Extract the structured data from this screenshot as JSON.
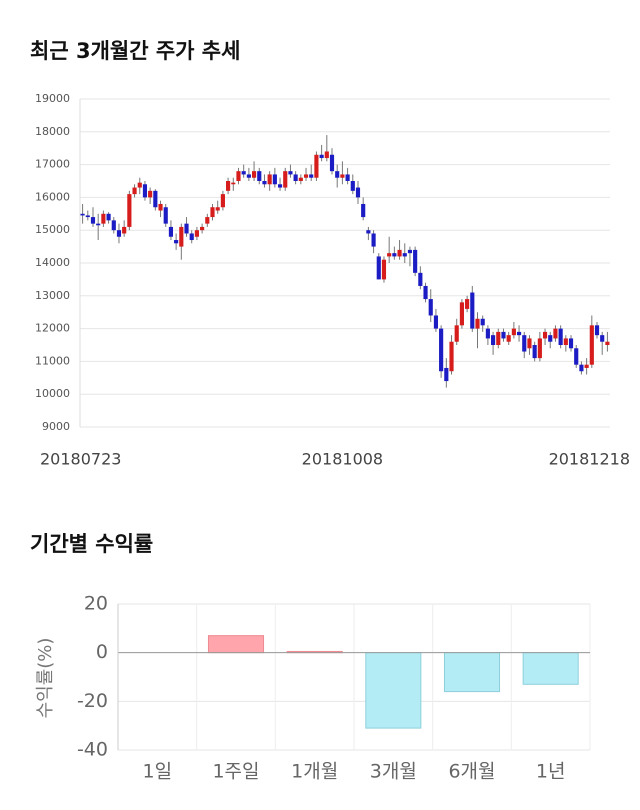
{
  "chart_data": [
    {
      "type": "candlestick",
      "title": "최근 3개월간 주가 추세",
      "categories": [
        "20180723",
        null,
        null,
        null,
        null,
        null,
        null,
        null,
        null,
        null,
        null,
        null,
        null,
        null,
        null,
        null,
        null,
        null,
        null,
        null,
        null,
        null,
        null,
        null,
        null,
        null,
        null,
        null,
        null,
        null,
        null,
        null,
        null,
        null,
        null,
        null,
        null,
        null,
        null,
        null,
        null,
        null,
        null,
        null,
        null,
        null,
        null,
        null,
        null,
        null,
        "20181008",
        null,
        null,
        null,
        null,
        null,
        null,
        null,
        null,
        null,
        null,
        null,
        null,
        null,
        null,
        null,
        null,
        null,
        null,
        null,
        null,
        null,
        null,
        null,
        null,
        null,
        null,
        null,
        null,
        null,
        null,
        null,
        null,
        null,
        null,
        null,
        null,
        null,
        null,
        null,
        null,
        null,
        null,
        null,
        null,
        null,
        null,
        null,
        null,
        null,
        null,
        "20181218"
      ],
      "candles": [
        [
          15500,
          15800,
          15200,
          15450
        ],
        [
          15450,
          15600,
          15300,
          15400
        ],
        [
          15400,
          15700,
          15100,
          15200
        ],
        [
          15200,
          15500,
          14700,
          15150
        ],
        [
          15200,
          15600,
          15100,
          15500
        ],
        [
          15500,
          15550,
          15200,
          15300
        ],
        [
          15300,
          15400,
          14900,
          15000
        ],
        [
          15000,
          15200,
          14600,
          14800
        ],
        [
          14900,
          15300,
          14800,
          15100
        ],
        [
          15100,
          16200,
          15000,
          16100
        ],
        [
          16100,
          16400,
          16000,
          16300
        ],
        [
          16300,
          16600,
          16100,
          16450
        ],
        [
          16400,
          16500,
          15900,
          16000
        ],
        [
          16000,
          16300,
          15800,
          16200
        ],
        [
          16200,
          16250,
          15600,
          15700
        ],
        [
          15600,
          15900,
          15400,
          15800
        ],
        [
          15700,
          15800,
          15100,
          15200
        ],
        [
          15100,
          15300,
          14700,
          14800
        ],
        [
          14700,
          14900,
          14400,
          14600
        ],
        [
          14500,
          15200,
          14100,
          15100
        ],
        [
          15200,
          15400,
          14800,
          14900
        ],
        [
          14900,
          15000,
          14600,
          14700
        ],
        [
          14800,
          15100,
          14700,
          15000
        ],
        [
          15000,
          15200,
          14900,
          15100
        ],
        [
          15200,
          15500,
          15100,
          15400
        ],
        [
          15400,
          15800,
          15300,
          15700
        ],
        [
          15600,
          15900,
          15500,
          15700
        ],
        [
          15700,
          16200,
          15600,
          16100
        ],
        [
          16200,
          16600,
          16100,
          16500
        ],
        [
          16400,
          16600,
          16200,
          16450
        ],
        [
          16500,
          16900,
          16400,
          16800
        ],
        [
          16800,
          17000,
          16600,
          16700
        ],
        [
          16700,
          16900,
          16500,
          16600
        ],
        [
          16600,
          17100,
          16500,
          16800
        ],
        [
          16800,
          16900,
          16400,
          16500
        ],
        [
          16500,
          16700,
          16300,
          16400
        ],
        [
          16400,
          16800,
          16200,
          16700
        ],
        [
          16700,
          16900,
          16300,
          16400
        ],
        [
          16400,
          16600,
          16200,
          16300
        ],
        [
          16300,
          16900,
          16200,
          16800
        ],
        [
          16800,
          17000,
          16600,
          16700
        ],
        [
          16700,
          16800,
          16400,
          16500
        ],
        [
          16500,
          16700,
          16400,
          16600
        ],
        [
          16600,
          16900,
          16500,
          16700
        ],
        [
          16700,
          17000,
          16500,
          16600
        ],
        [
          16600,
          17400,
          16500,
          17300
        ],
        [
          17300,
          17600,
          17100,
          17200
        ],
        [
          17200,
          17900,
          17100,
          17400
        ],
        [
          17300,
          17500,
          16700,
          16800
        ],
        [
          16800,
          17000,
          16300,
          16600
        ],
        [
          16600,
          17100,
          16400,
          16700
        ],
        [
          16700,
          16900,
          16400,
          16500
        ],
        [
          16500,
          16700,
          16100,
          16200
        ],
        [
          16300,
          16500,
          15800,
          16000
        ],
        [
          15800,
          16000,
          15300,
          15400
        ],
        [
          15000,
          15100,
          14700,
          14900
        ],
        [
          14900,
          15000,
          14300,
          14500
        ],
        [
          14200,
          14300,
          13500,
          13500
        ],
        [
          13500,
          14200,
          13400,
          14100
        ],
        [
          14200,
          14800,
          14000,
          14300
        ],
        [
          14300,
          14500,
          14100,
          14200
        ],
        [
          14200,
          14700,
          14100,
          14400
        ],
        [
          14300,
          14600,
          14000,
          14200
        ],
        [
          14400,
          14500,
          13900,
          14300
        ],
        [
          14400,
          14500,
          13600,
          13700
        ],
        [
          13700,
          13900,
          13200,
          13300
        ],
        [
          13300,
          13400,
          12800,
          12900
        ],
        [
          12900,
          13200,
          12200,
          12400
        ],
        [
          12400,
          12600,
          11900,
          12000
        ],
        [
          12000,
          12100,
          10500,
          10700
        ],
        [
          10800,
          11100,
          10200,
          10400
        ],
        [
          10700,
          11800,
          10600,
          11600
        ],
        [
          11600,
          12300,
          11500,
          12100
        ],
        [
          12100,
          12900,
          12000,
          12800
        ],
        [
          12600,
          13000,
          12500,
          12900
        ],
        [
          13100,
          13300,
          11900,
          12000
        ],
        [
          12000,
          12500,
          11400,
          12300
        ],
        [
          12300,
          12400,
          11900,
          12100
        ],
        [
          12000,
          12100,
          11500,
          11700
        ],
        [
          11800,
          11900,
          11200,
          11500
        ],
        [
          11500,
          12000,
          11400,
          11900
        ],
        [
          11900,
          12000,
          11600,
          11700
        ],
        [
          11600,
          11900,
          11500,
          11800
        ],
        [
          11800,
          12200,
          11700,
          12000
        ],
        [
          11900,
          12100,
          11600,
          11800
        ],
        [
          11800,
          11900,
          11100,
          11300
        ],
        [
          11400,
          11800,
          11200,
          11700
        ],
        [
          11500,
          11600,
          11000,
          11100
        ],
        [
          11100,
          11900,
          11000,
          11700
        ],
        [
          11700,
          12000,
          11500,
          11900
        ],
        [
          11800,
          11900,
          11400,
          11600
        ],
        [
          11700,
          12100,
          11600,
          12000
        ],
        [
          12000,
          12100,
          11400,
          11500
        ],
        [
          11500,
          11800,
          11300,
          11700
        ],
        [
          11700,
          11800,
          11300,
          11400
        ],
        [
          11400,
          11500,
          10800,
          10900
        ],
        [
          10900,
          11000,
          10600,
          10700
        ],
        [
          10800,
          11100,
          10600,
          10900
        ],
        [
          10900,
          12400,
          10800,
          12100
        ],
        [
          12100,
          12200,
          11700,
          11800
        ],
        [
          11800,
          11900,
          11200,
          11600
        ],
        [
          11500,
          11900,
          11300,
          11600
        ]
      ],
      "up_color": "#d71c1c",
      "down_color": "#1c1cc4",
      "ylim": [
        9000,
        19000
      ],
      "yticks": [
        9000,
        10000,
        11000,
        12000,
        13000,
        14000,
        15000,
        16000,
        17000,
        18000,
        19000
      ],
      "grid": true
    },
    {
      "type": "bar",
      "title": "기간별 수익률",
      "ylabel": "수익률(%)",
      "categories": [
        "1일",
        "1주일",
        "1개월",
        "3개월",
        "6개월",
        "1년"
      ],
      "values": [
        0,
        7,
        0.5,
        -31,
        -16,
        -13
      ],
      "colors": [
        "#ffa5ab",
        "#ffa5ab",
        "#ffa5ab",
        "#b3ecf5",
        "#b3ecf5",
        "#b3ecf5"
      ],
      "ylim": [
        -40,
        20
      ],
      "yticks": [
        -40,
        -20,
        0,
        20
      ],
      "grid": true
    }
  ]
}
